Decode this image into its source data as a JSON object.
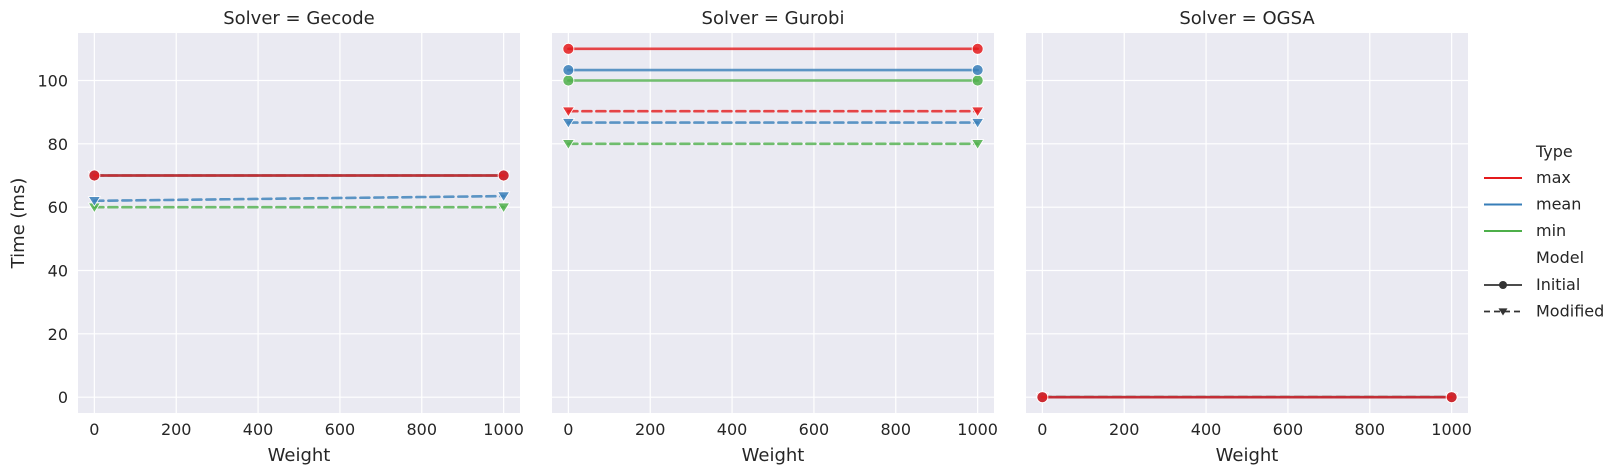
{
  "chart_data": {
    "type": "line",
    "facet_variable": "Solver",
    "y_label": "Time (ms)",
    "x_label": "Weight",
    "x_ticks": [
      0,
      200,
      400,
      600,
      800,
      1000
    ],
    "y_ticks": [
      0,
      20,
      40,
      60,
      80,
      100
    ],
    "xlim": [
      -40,
      1040
    ],
    "ylim": [
      -5,
      115
    ],
    "grid": true,
    "legend": {
      "placement": "right",
      "hue_title": "Type",
      "style_title": "Model",
      "hue_entries": [
        {
          "label": "max",
          "color": "#e41a1c"
        },
        {
          "label": "mean",
          "color": "#377eb8"
        },
        {
          "label": "min",
          "color": "#4daf4a"
        }
      ],
      "style_entries": [
        {
          "label": "Initial",
          "dash": "solid",
          "marker": "circle"
        },
        {
          "label": "Modified",
          "dash": "dashed",
          "marker": "triangle-down"
        }
      ]
    },
    "panels": [
      {
        "title": "Solver = Gecode",
        "series": [
          {
            "type": "max",
            "model": "Initial",
            "x": [
              0,
              1000
            ],
            "y": [
              70,
              70
            ]
          },
          {
            "type": "mean",
            "model": "Initial",
            "x": [
              0,
              1000
            ],
            "y": [
              70,
              70
            ]
          },
          {
            "type": "min",
            "model": "Initial",
            "x": [
              0,
              1000
            ],
            "y": [
              70,
              70
            ]
          },
          {
            "type": "max",
            "model": "Modified",
            "x": [
              0,
              1000
            ],
            "y": [
              70,
              70
            ]
          },
          {
            "type": "mean",
            "model": "Modified",
            "x": [
              0,
              1000
            ],
            "y": [
              62,
              63.5
            ]
          },
          {
            "type": "min",
            "model": "Modified",
            "x": [
              0,
              1000
            ],
            "y": [
              60,
              60
            ]
          }
        ]
      },
      {
        "title": "Solver = Gurobi",
        "series": [
          {
            "type": "max",
            "model": "Initial",
            "x": [
              0,
              1000
            ],
            "y": [
              110,
              110
            ]
          },
          {
            "type": "mean",
            "model": "Initial",
            "x": [
              0,
              1000
            ],
            "y": [
              103.3,
              103.3
            ]
          },
          {
            "type": "min",
            "model": "Initial",
            "x": [
              0,
              1000
            ],
            "y": [
              100,
              100
            ]
          },
          {
            "type": "max",
            "model": "Modified",
            "x": [
              0,
              1000
            ],
            "y": [
              90.3,
              90.3
            ]
          },
          {
            "type": "mean",
            "model": "Modified",
            "x": [
              0,
              1000
            ],
            "y": [
              86.7,
              86.7
            ]
          },
          {
            "type": "min",
            "model": "Modified",
            "x": [
              0,
              1000
            ],
            "y": [
              80,
              80
            ]
          }
        ]
      },
      {
        "title": "Solver = OGSA",
        "series": [
          {
            "type": "max",
            "model": "Initial",
            "x": [
              0,
              1000
            ],
            "y": [
              0,
              0
            ]
          },
          {
            "type": "mean",
            "model": "Initial",
            "x": [
              0,
              1000
            ],
            "y": [
              0,
              0
            ]
          },
          {
            "type": "min",
            "model": "Initial",
            "x": [
              0,
              1000
            ],
            "y": [
              0,
              0
            ]
          },
          {
            "type": "max",
            "model": "Modified",
            "x": [
              0,
              1000
            ],
            "y": [
              0,
              0
            ]
          },
          {
            "type": "mean",
            "model": "Modified",
            "x": [
              0,
              1000
            ],
            "y": [
              0,
              0
            ]
          },
          {
            "type": "min",
            "model": "Modified",
            "x": [
              0,
              1000
            ],
            "y": [
              0,
              0
            ]
          }
        ]
      }
    ],
    "colors": {
      "panel_background": "#eaeaf2",
      "grid": "#ffffff",
      "text": "#262626"
    }
  }
}
